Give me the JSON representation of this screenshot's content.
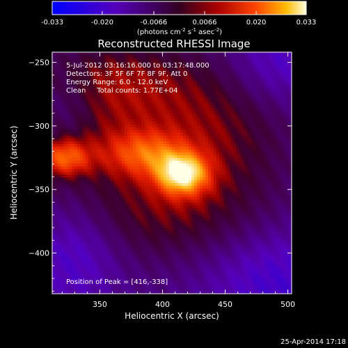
{
  "chart_data": {
    "type": "heatmap",
    "title": "Reconstructed RHESSI Image",
    "xlabel": "Heliocentric X (arcsec)",
    "ylabel": "Heliocentric Y (arcsec)",
    "xlim": [
      312,
      503
    ],
    "ylim": [
      -432,
      -242
    ],
    "x_ticks": [
      350,
      400,
      450,
      500
    ],
    "y_ticks": [
      -250,
      -300,
      -350,
      -400
    ],
    "colorbar": {
      "ticks": [
        "-0.033",
        "-0.020",
        "-0.0066",
        "0.0066",
        "0.020",
        "0.033"
      ],
      "label_main": "(photons cm",
      "label_sup1": "-2",
      "label_mid": " s",
      "label_sup2": "-1",
      "label_end": " asec",
      "label_sup3": "-2",
      "label_close": ")",
      "range": [
        -0.033,
        0.033
      ]
    },
    "annotations": [
      "5-Jul-2012 03:16:16.000 to 03:17:48.000",
      "Detectors: 3F 5F 6F 7F 8F 9F, Att 0",
      "Energy Range: 6.0 - 12.0 keV",
      "Clean     Total counts: 1.77E+04"
    ],
    "peak_text": "Position of Peak = [416,-338]",
    "peak": [
      416,
      -338
    ],
    "sources": [
      {
        "x": 416,
        "y": -338,
        "sx": 14,
        "sy": 11,
        "amp": 0.033
      },
      {
        "x": 322,
        "y": -325,
        "sx": 14,
        "sy": 10,
        "amp": 0.02
      },
      {
        "x": 387,
        "y": -322,
        "sx": 22,
        "sy": 12,
        "amp": 0.016
      },
      {
        "x": 350,
        "y": -300,
        "sx": 70,
        "sy": 35,
        "amp": 0.012
      },
      {
        "x": 400,
        "y": -370,
        "sx": 60,
        "sy": 28,
        "amp": 0.01
      },
      {
        "x": 345,
        "y": -260,
        "sx": 55,
        "sy": 20,
        "amp": 0.009
      },
      {
        "x": 450,
        "y": -300,
        "sx": 40,
        "sy": 45,
        "amp": 0.008
      }
    ],
    "timestamp": "25-Apr-2014 17:18"
  }
}
